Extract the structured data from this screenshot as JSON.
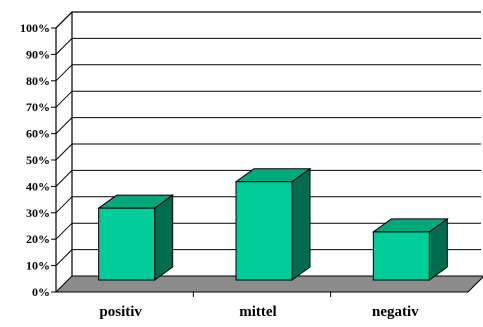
{
  "chart_data": {
    "type": "bar",
    "style": "3d",
    "categories": [
      "positiv",
      "mittel",
      "negativ"
    ],
    "values": [
      31,
      41,
      22
    ],
    "ylim": [
      0,
      100
    ],
    "yticks": [
      "0%",
      "10%",
      "20%",
      "30%",
      "40%",
      "50%",
      "60%",
      "70%",
      "80%",
      "90%",
      "100%"
    ],
    "title": "",
    "xlabel": "",
    "ylabel": "",
    "grid": true,
    "legend": "none",
    "colors": {
      "bar_front": "#00cc99",
      "bar_top": "#00a87c",
      "bar_side": "#006b4e",
      "floor": "#8c8c8c",
      "grid": "#000000"
    }
  }
}
